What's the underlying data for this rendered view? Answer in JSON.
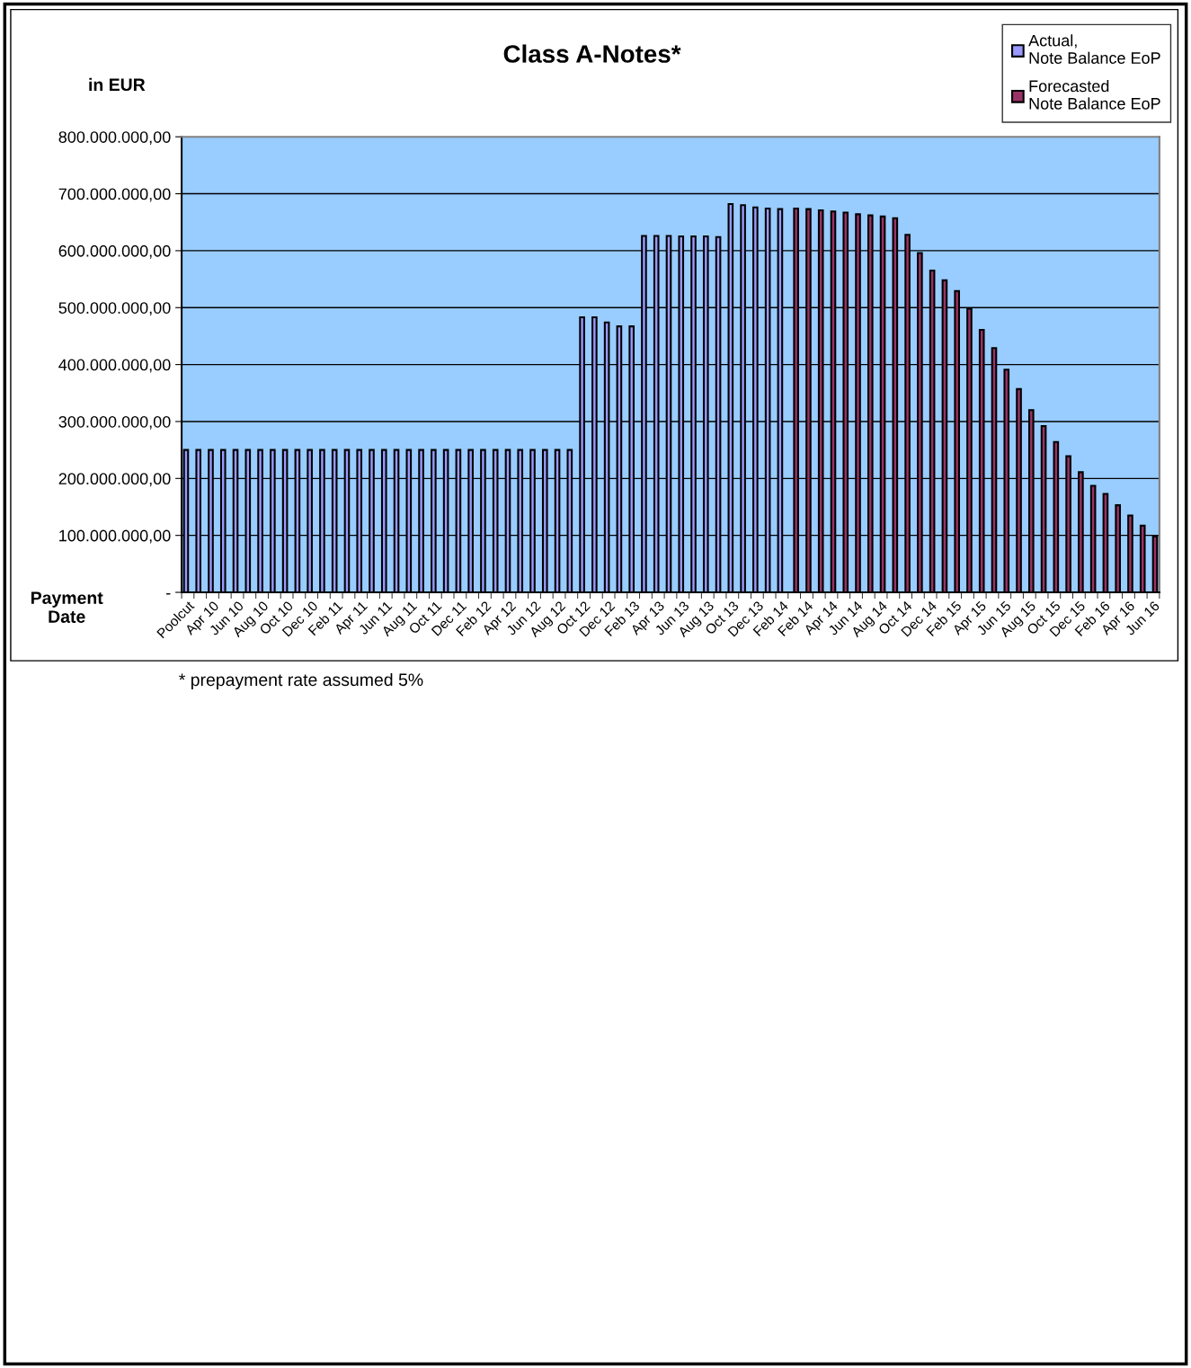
{
  "chart_data": {
    "type": "bar",
    "title": "Class A-Notes*",
    "ylabel": "in EUR",
    "xlabel": "Payment\nDate",
    "categories": [
      "Poolcut",
      null,
      "Apr 10",
      null,
      "Jun 10",
      null,
      "Aug 10",
      null,
      "Oct 10",
      null,
      "Dec 10",
      null,
      "Feb 11",
      null,
      "Apr 11",
      null,
      "Jun 11",
      null,
      "Aug 11",
      null,
      "Oct 11",
      null,
      "Dec 11",
      null,
      "Feb 12",
      null,
      "Apr 12",
      null,
      "Jun 12",
      null,
      "Aug 12",
      null,
      "Oct 12",
      null,
      "Dec 12",
      null,
      "Feb 13",
      null,
      "Apr 13",
      null,
      "Jun 13",
      null,
      "Aug 13",
      null,
      "Oct 13",
      null,
      "Dec 13",
      null,
      "Feb 14",
      null,
      "Feb 14",
      null,
      "Apr 14",
      null,
      "Jun 14",
      null,
      "Aug 14",
      null,
      "Oct 14",
      null,
      "Dec 14",
      null,
      "Feb 15",
      null,
      "Apr 15",
      null,
      "Jun 15",
      null,
      "Aug 15",
      null,
      "Oct 15",
      null,
      "Dec 15",
      null,
      "Feb 16",
      null,
      "Apr 16",
      null,
      "Jun 16"
    ],
    "series": [
      {
        "name": "Actual,\nNote Balance EoP",
        "color": "#9999ff",
        "values": [
          250000000,
          250000000,
          250000000,
          250000000,
          250000000,
          250000000,
          250000000,
          250000000,
          250000000,
          250000000,
          250000000,
          250000000,
          250000000,
          250000000,
          250000000,
          250000000,
          250000000,
          250000000,
          250000000,
          250000000,
          250000000,
          250000000,
          250000000,
          250000000,
          250000000,
          250000000,
          250000000,
          250000000,
          250000000,
          250000000,
          250000000,
          250000000,
          483000000,
          483000000,
          474000000,
          467000000,
          467000000,
          626000000,
          626000000,
          626000000,
          625000000,
          625000000,
          625000000,
          624000000,
          682000000,
          680000000,
          676000000,
          674000000,
          673000000,
          null,
          null,
          null,
          null,
          null,
          null,
          null,
          null,
          null,
          null,
          null,
          null,
          null,
          null,
          null,
          null,
          null,
          null,
          null,
          null,
          null,
          null,
          null,
          null,
          null,
          null,
          null,
          null,
          null,
          null
        ]
      },
      {
        "name": "Forecasted\nNote Balance EoP",
        "color": "#993366",
        "values": [
          null,
          null,
          null,
          null,
          null,
          null,
          null,
          null,
          null,
          null,
          null,
          null,
          null,
          null,
          null,
          null,
          null,
          null,
          null,
          null,
          null,
          null,
          null,
          null,
          null,
          null,
          null,
          null,
          null,
          null,
          null,
          null,
          null,
          null,
          null,
          null,
          null,
          null,
          null,
          null,
          null,
          null,
          null,
          null,
          null,
          null,
          null,
          null,
          null,
          674000000,
          673000000,
          671000000,
          669000000,
          667000000,
          664000000,
          662000000,
          660000000,
          657000000,
          628000000,
          596000000,
          565000000,
          548000000,
          529000000,
          498000000,
          461000000,
          429000000,
          391000000,
          357000000,
          320000000,
          292000000,
          264000000,
          239000000,
          211000000,
          187000000,
          173000000,
          153000000,
          135000000,
          117000000,
          98000000
        ]
      }
    ],
    "ylim": [
      0,
      800000000
    ],
    "yticks": [
      {
        "value": 0,
        "label": "-"
      },
      {
        "value": 100000000,
        "label": "100.000.000,00"
      },
      {
        "value": 200000000,
        "label": "200.000.000,00"
      },
      {
        "value": 300000000,
        "label": "300.000.000,00"
      },
      {
        "value": 400000000,
        "label": "400.000.000,00"
      },
      {
        "value": 500000000,
        "label": "500.000.000,00"
      },
      {
        "value": 600000000,
        "label": "600.000.000,00"
      },
      {
        "value": 700000000,
        "label": "700.000.000,00"
      },
      {
        "value": 800000000,
        "label": "800.000.000,00"
      }
    ],
    "grid": "y",
    "legend": "top right",
    "annotations": [
      "* prepayment rate assumed 5%"
    ]
  }
}
